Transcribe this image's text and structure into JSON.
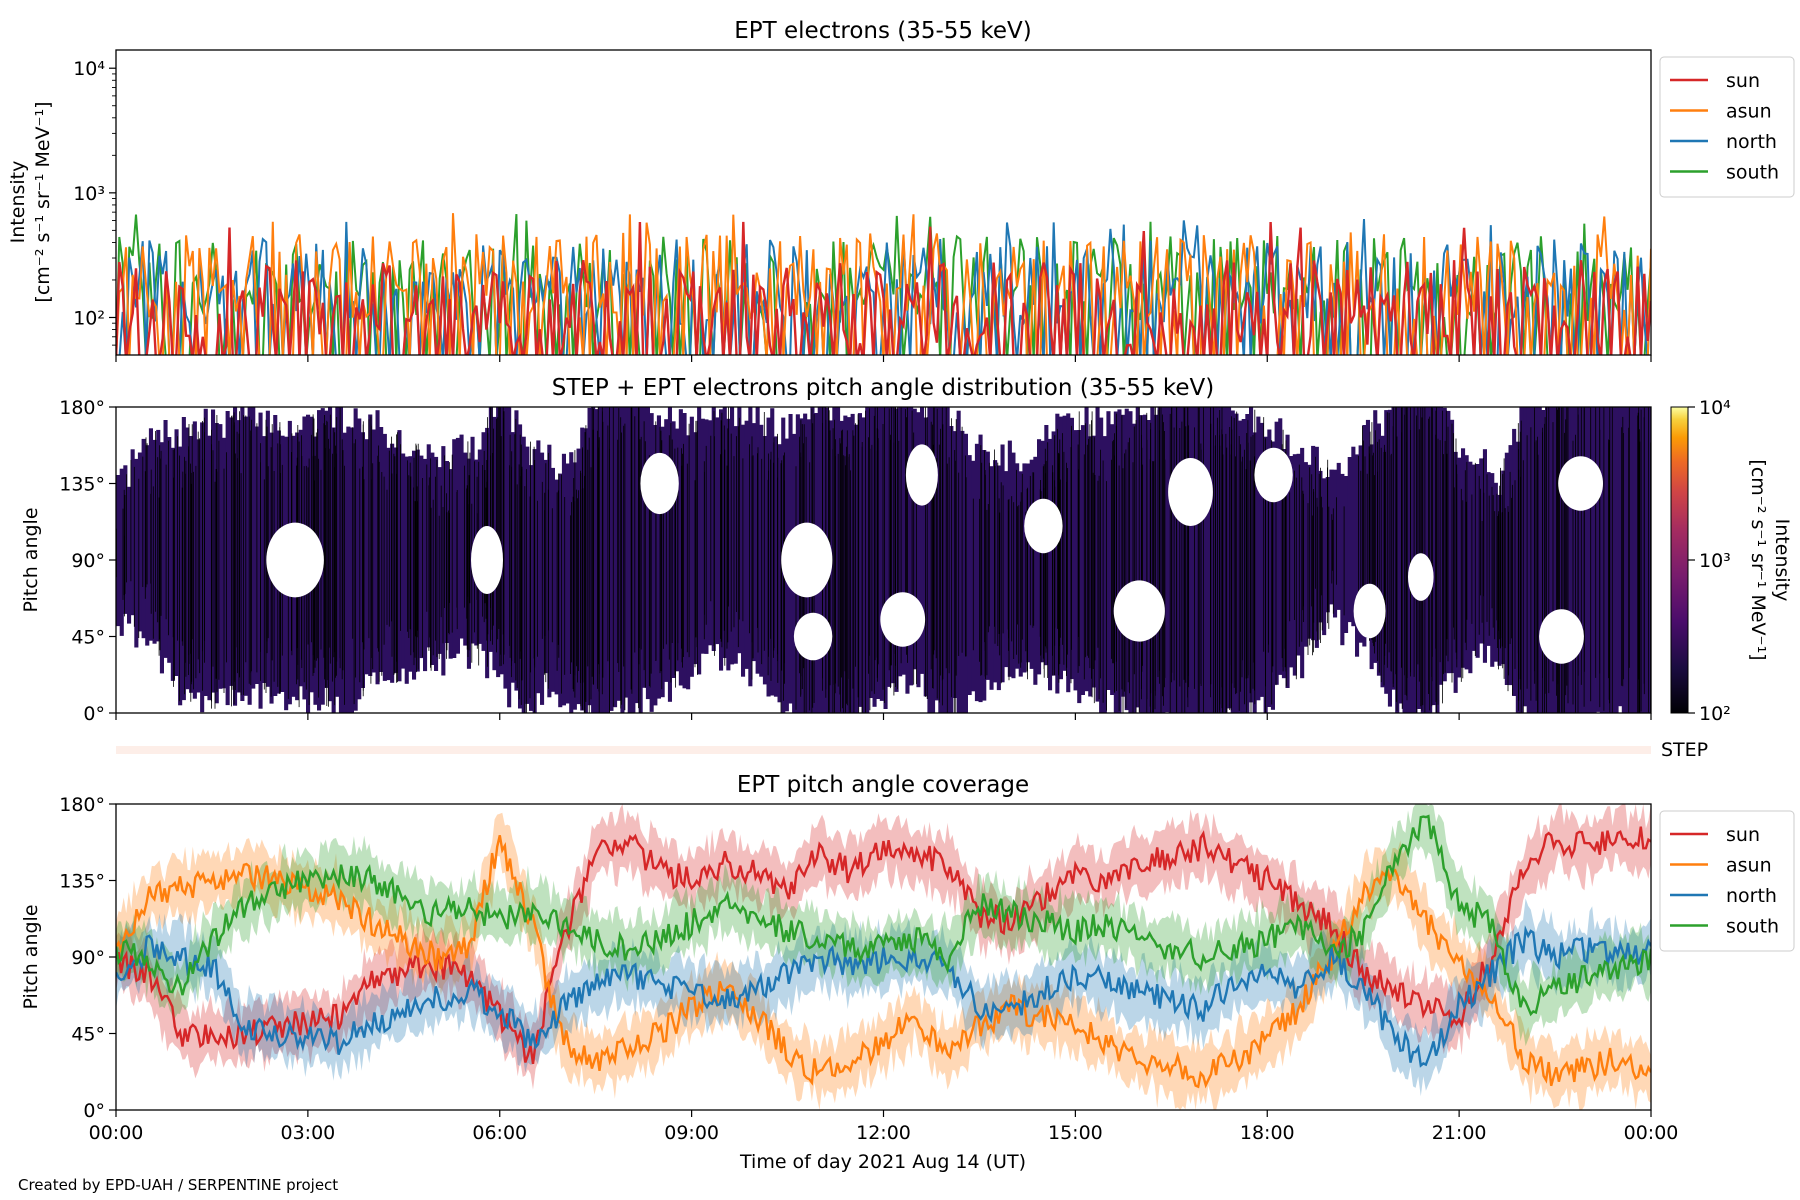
{
  "figure": {
    "credit": "Created by EPD-UAH / SERPENTINE project",
    "xlabel": "Time of day 2021 Aug 14 (UT)",
    "x_ticks": [
      "00:00",
      "03:00",
      "06:00",
      "09:00",
      "12:00",
      "15:00",
      "18:00",
      "21:00",
      "00:00"
    ],
    "step_label": "STEP"
  },
  "colors": {
    "sun": "#d62728",
    "asun": "#ff7f0e",
    "north": "#1f77b4",
    "south": "#2ca02c",
    "pad_fill": "#2d1060",
    "pad_edge": "#000000",
    "step_bar": "#fdeee8"
  },
  "chart_data": [
    {
      "type": "line",
      "title": "EPT electrons (35-55 keV)",
      "ylabel": "Intensity",
      "ylabel_units": "[cm⁻² s⁻¹ sr⁻¹ MeV⁻¹]",
      "yscale": "log",
      "ylim": [
        50,
        14000
      ],
      "y_ticks": [
        "10⁴",
        "10³",
        "10²"
      ],
      "xlim_hours": [
        0,
        24
      ],
      "legend": "upper-right outside",
      "series": [
        {
          "name": "sun",
          "color_key": "sun",
          "typical": 120,
          "max": 600
        },
        {
          "name": "asun",
          "color_key": "asun",
          "typical": 200,
          "max": 700
        },
        {
          "name": "north",
          "color_key": "north",
          "typical": 180,
          "max": 620
        },
        {
          "name": "south",
          "color_key": "south",
          "typical": 190,
          "max": 680
        }
      ]
    },
    {
      "type": "heatmap",
      "title": "STEP + EPT electrons pitch angle distribution (35-55 keV)",
      "ylabel": "Pitch angle",
      "y_ticks": [
        "180°",
        "135°",
        "90°",
        "45°",
        "0°"
      ],
      "ylim": [
        0,
        180
      ],
      "colorbar": {
        "label": "Intensity",
        "units": "[cm⁻² s⁻¹ sr⁻¹ MeV⁻¹]",
        "scale": "log",
        "range": [
          100,
          10000
        ],
        "ticks": [
          "10⁴",
          "10³",
          "10²"
        ]
      }
    },
    {
      "type": "line",
      "title": "EPT pitch angle coverage",
      "ylabel": "Pitch angle",
      "y_ticks": [
        "180°",
        "135°",
        "90°",
        "45°",
        "0°"
      ],
      "ylim": [
        0,
        180
      ],
      "legend": "upper-right outside",
      "x_hours": [
        0,
        0.5,
        1,
        1.5,
        2,
        2.5,
        3,
        3.5,
        4,
        4.5,
        5,
        5.5,
        6,
        6.5,
        7,
        7.5,
        8,
        8.5,
        9,
        9.5,
        10,
        10.5,
        11,
        11.5,
        12,
        12.5,
        13,
        13.5,
        14,
        14.5,
        15,
        15.5,
        16,
        16.5,
        17,
        17.5,
        18,
        18.5,
        19,
        19.5,
        20,
        20.5,
        21,
        21.5,
        22,
        22.5,
        23,
        23.5,
        24
      ],
      "series": [
        {
          "name": "sun",
          "color_key": "sun",
          "values": [
            88,
            80,
            45,
            42,
            45,
            48,
            52,
            55,
            75,
            82,
            85,
            80,
            55,
            30,
            100,
            150,
            160,
            140,
            135,
            145,
            140,
            130,
            150,
            140,
            155,
            150,
            145,
            115,
            110,
            125,
            140,
            135,
            145,
            150,
            155,
            145,
            135,
            120,
            110,
            80,
            70,
            60,
            55,
            90,
            140,
            160,
            155,
            160,
            158
          ]
        },
        {
          "name": "asun",
          "color_key": "asun",
          "values": [
            95,
            125,
            130,
            135,
            140,
            135,
            130,
            125,
            110,
            100,
            90,
            95,
            160,
            110,
            40,
            30,
            35,
            45,
            60,
            70,
            55,
            35,
            20,
            30,
            40,
            55,
            30,
            50,
            60,
            55,
            50,
            40,
            30,
            25,
            20,
            30,
            40,
            60,
            90,
            130,
            140,
            110,
            85,
            70,
            30,
            20,
            25,
            30,
            20
          ]
        },
        {
          "name": "north",
          "color_key": "north",
          "values": [
            80,
            95,
            90,
            85,
            50,
            45,
            42,
            40,
            50,
            60,
            65,
            70,
            60,
            40,
            60,
            75,
            80,
            75,
            70,
            65,
            70,
            80,
            90,
            85,
            88,
            90,
            85,
            60,
            60,
            70,
            80,
            75,
            70,
            65,
            60,
            75,
            80,
            70,
            90,
            75,
            40,
            30,
            60,
            80,
            100,
            90,
            95,
            90,
            92
          ]
        },
        {
          "name": "south",
          "color_key": "south",
          "values": [
            95,
            90,
            70,
            100,
            120,
            130,
            135,
            140,
            135,
            125,
            115,
            120,
            110,
            120,
            110,
            100,
            95,
            100,
            110,
            120,
            115,
            105,
            100,
            95,
            95,
            100,
            90,
            120,
            115,
            110,
            105,
            110,
            100,
            95,
            90,
            95,
            100,
            110,
            90,
            105,
            150,
            170,
            120,
            110,
            60,
            70,
            80,
            85,
            88
          ]
        }
      ]
    }
  ]
}
